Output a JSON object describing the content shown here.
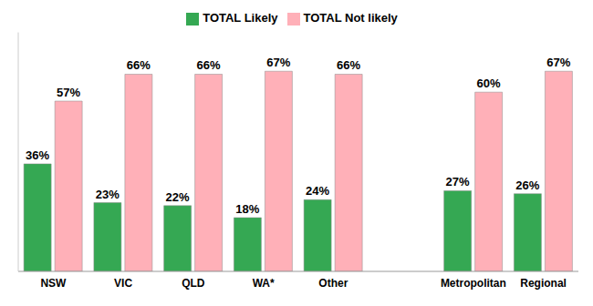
{
  "chart_data": {
    "type": "bar",
    "categories": [
      "NSW",
      "VIC",
      "QLD",
      "WA*",
      "Other",
      null,
      "Metropolitan",
      "Regional"
    ],
    "series": [
      {
        "name": "TOTAL Likely",
        "color": "#35a853",
        "values": [
          36,
          23,
          22,
          18,
          24,
          null,
          27,
          26
        ],
        "value_labels": [
          "36%",
          "23%",
          "22%",
          "18%",
          "24%",
          null,
          "27%",
          "26%"
        ]
      },
      {
        "name": "TOTAL Not likely",
        "color": "#ffb0b8",
        "values": [
          57,
          66,
          66,
          67,
          66,
          null,
          60,
          67
        ],
        "value_labels": [
          "57%",
          "66%",
          "66%",
          "67%",
          "66%",
          null,
          "60%",
          "67%"
        ]
      }
    ],
    "ylim": [
      0,
      80
    ],
    "grid": false,
    "legend": "top",
    "data_labels": true,
    "tick_labels": "x"
  }
}
